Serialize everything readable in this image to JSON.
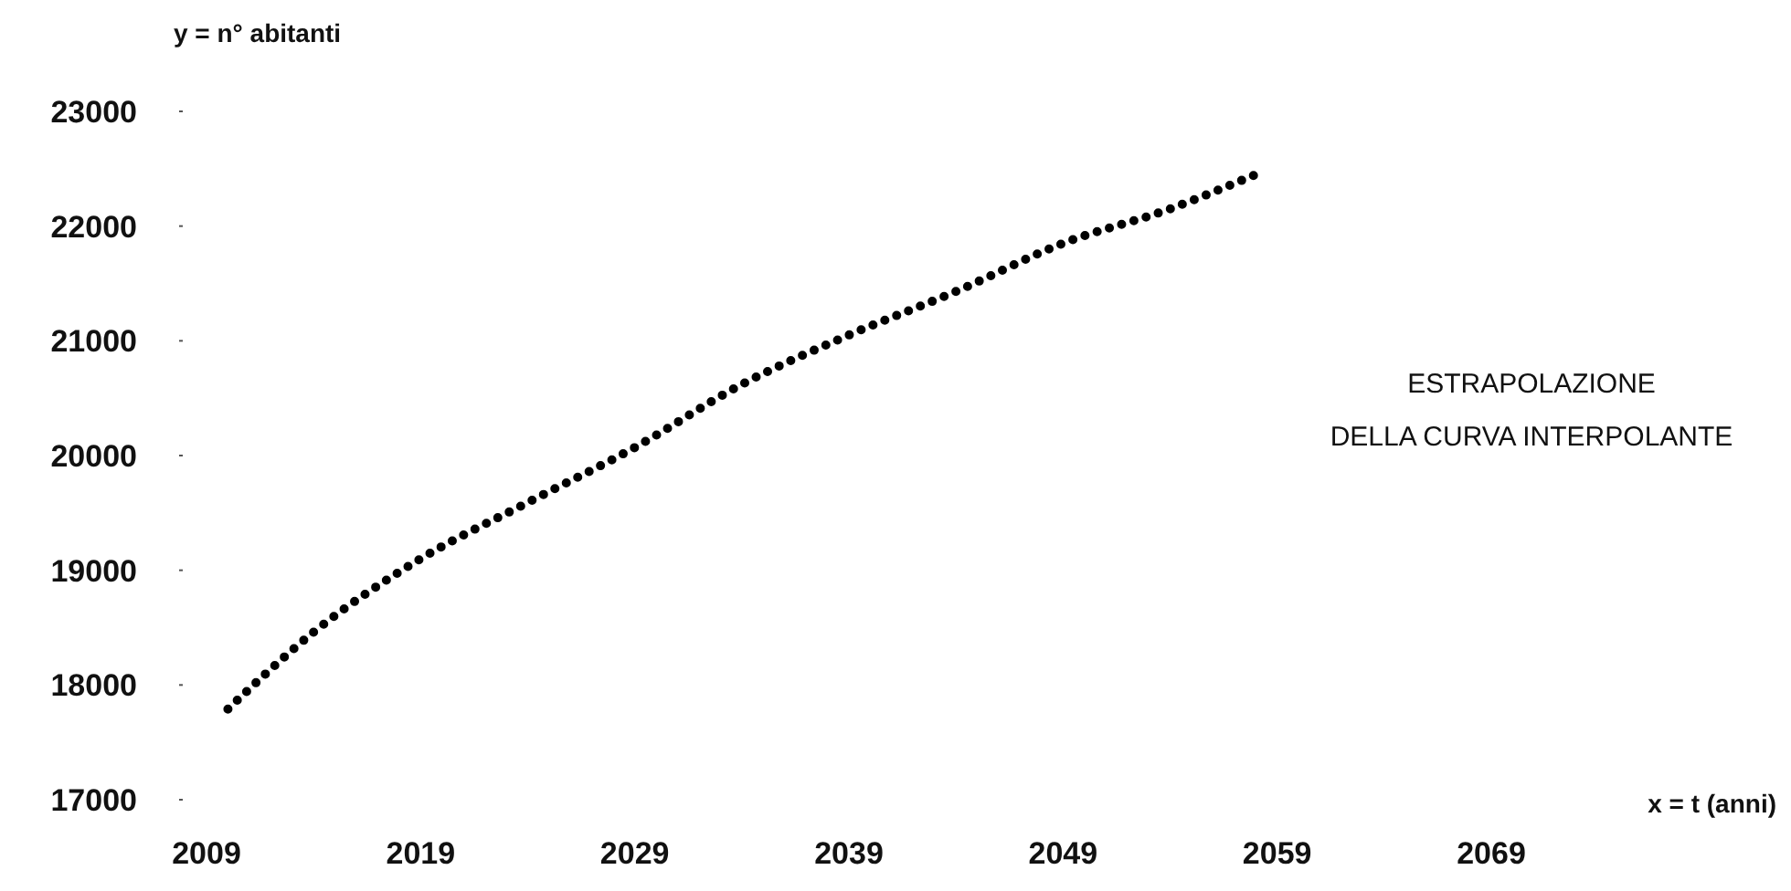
{
  "chart_data": {
    "type": "line",
    "ylabel": "y = n° abitanti",
    "xlabel": "x = t (anni)",
    "annotations": [
      "ESTRAPOLAZIONE\nDELLA CURVA INTERPOLANTE"
    ],
    "x": [
      2010,
      2014,
      2019,
      2024,
      2029,
      2034,
      2039,
      2044,
      2049,
      2054,
      2058
    ],
    "series": [
      {
        "color": "#000000",
        "values": [
          17790,
          18460,
          19100,
          19590,
          20070,
          20620,
          21050,
          21430,
          21850,
          22150,
          22450
        ]
      }
    ],
    "xlim": [
      2009,
      2069
    ],
    "xticks": [
      2009,
      2019,
      2029,
      2039,
      2049,
      2059,
      2069
    ],
    "ylim": [
      17000,
      23000
    ],
    "yticks": [
      17000,
      18000,
      19000,
      20000,
      21000,
      22000,
      23000
    ],
    "grid": false,
    "marker": "none",
    "line_style": "dotted"
  }
}
